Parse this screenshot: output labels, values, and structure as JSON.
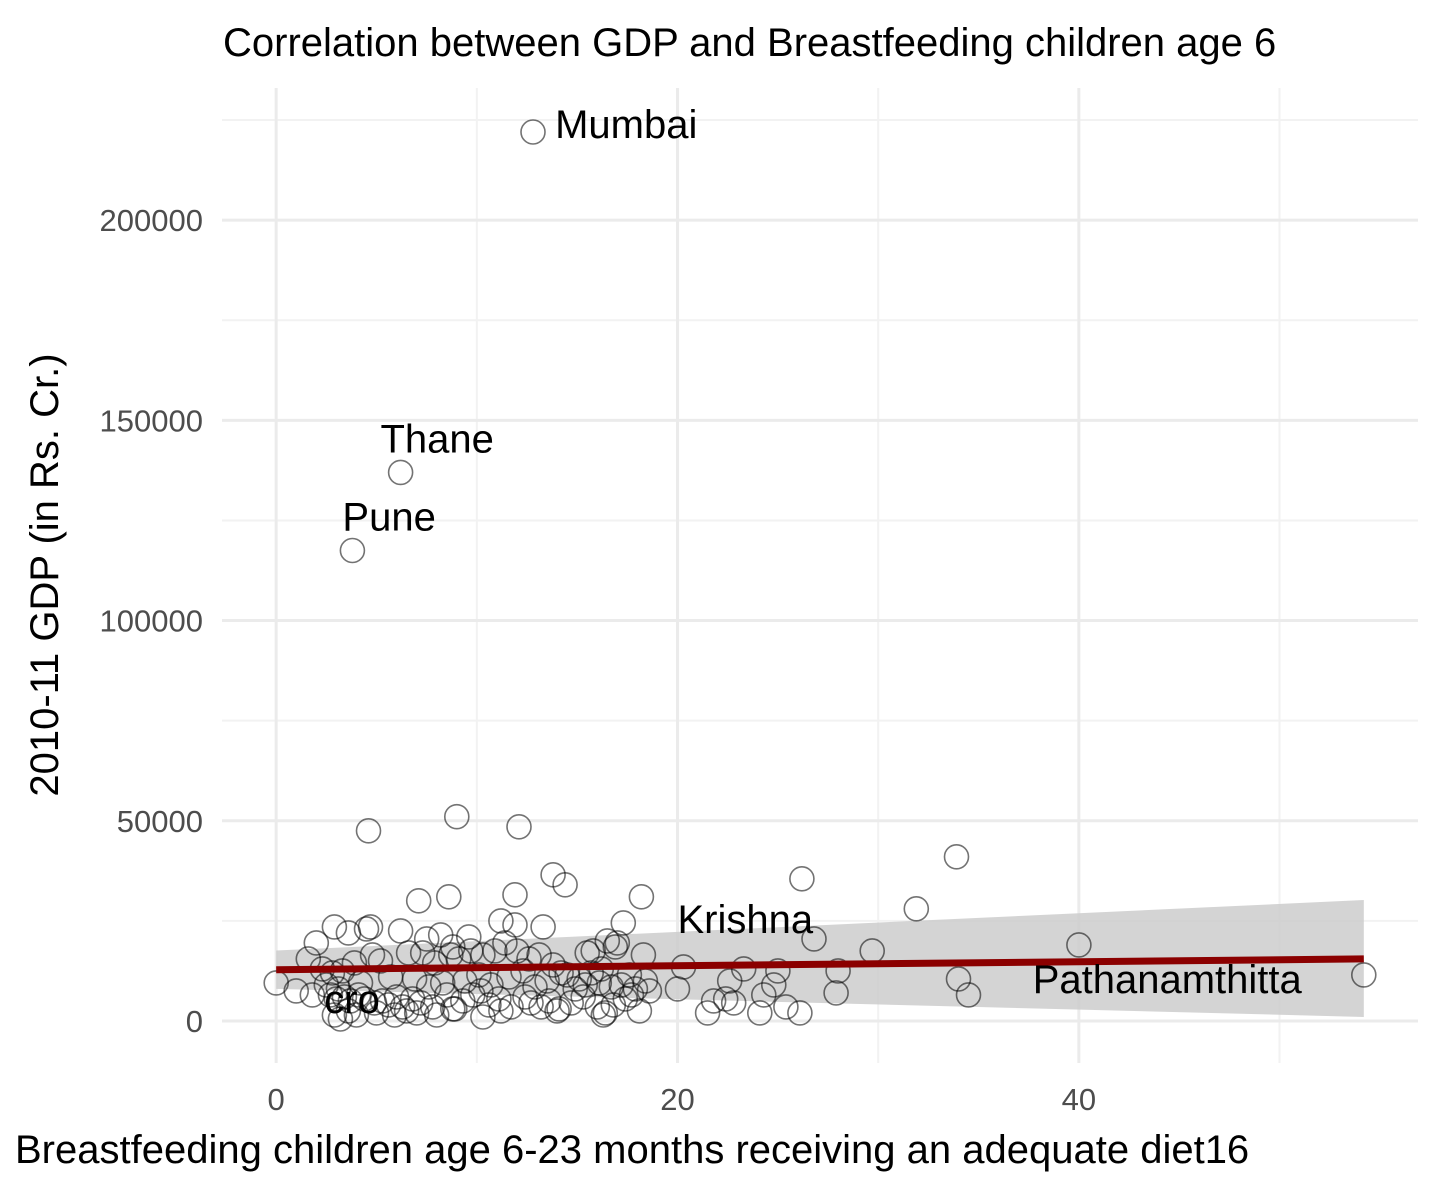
{
  "chart_data": {
    "type": "scatter",
    "title": "Correlation between GDP and Breastfeeding children age 6",
    "xlabel": "Breastfeeding children age 6-23 months receiving an adequate diet16",
    "ylabel": "2010-11 GDP (in Rs. Cr.)",
    "xlim": [
      -2.7,
      56.9
    ],
    "ylim": [
      -10500,
      233000
    ],
    "x_ticks": [
      0,
      20,
      40
    ],
    "x_tick_labels": [
      "0",
      "20",
      "40"
    ],
    "y_ticks": [
      0,
      50000,
      100000,
      150000,
      200000
    ],
    "y_tick_labels": [
      "0",
      "50000",
      "100000",
      "150000",
      "200000"
    ],
    "grid": true,
    "legend": "none",
    "colors": {
      "points": "#000000",
      "fit_line": "#8b0000",
      "confidence_band": "#cccccc"
    },
    "fit_line": {
      "x": [
        0,
        54.2
      ],
      "y": [
        12800,
        15500
      ]
    },
    "confidence_band": {
      "x": [
        0,
        54.2
      ],
      "upper": [
        17600,
        30200
      ],
      "lower": [
        8000,
        1000
      ]
    },
    "annotations": [
      {
        "text": "Mumbai",
        "x": 13.9,
        "y": 224000,
        "anchor": "start"
      },
      {
        "text": "Thane",
        "x": 5.2,
        "y": 145500,
        "anchor": "start"
      },
      {
        "text": "Pune",
        "x": 3.3,
        "y": 126000,
        "anchor": "start"
      },
      {
        "text": "Krishna",
        "x": 20,
        "y": 25500,
        "anchor": "start"
      },
      {
        "text": "Pathanamthitta",
        "x": 37.7,
        "y": 10500,
        "anchor": "start"
      },
      {
        "text": "cro",
        "x": 2.4,
        "y": 5500,
        "anchor": "start"
      }
    ],
    "series": [
      {
        "points": [
          [
            12.8,
            222000
          ],
          [
            6.2,
            137000
          ],
          [
            3.8,
            117500
          ],
          [
            4.6,
            47500
          ],
          [
            9.0,
            51000
          ],
          [
            12.1,
            48500
          ],
          [
            13.8,
            36500
          ],
          [
            14.4,
            34000
          ],
          [
            26.2,
            35500
          ],
          [
            33.9,
            41000
          ],
          [
            8.6,
            31000
          ],
          [
            7.1,
            30000
          ],
          [
            11.9,
            31500
          ],
          [
            18.2,
            31000
          ],
          [
            31.9,
            28000
          ],
          [
            26.8,
            20500
          ],
          [
            40.0,
            19000
          ],
          [
            29.7,
            17500
          ],
          [
            34.0,
            10500
          ],
          [
            34.5,
            6500
          ],
          [
            54.2,
            11500
          ],
          [
            28.0,
            12500
          ],
          [
            27.9,
            7000
          ],
          [
            26.1,
            2000
          ],
          [
            25.4,
            3500
          ],
          [
            24.1,
            2000
          ],
          [
            25.0,
            12500
          ],
          [
            23.3,
            13000
          ],
          [
            20.3,
            13500
          ],
          [
            20.0,
            8000
          ],
          [
            21.5,
            2000
          ],
          [
            21.8,
            5000
          ],
          [
            22.4,
            5500
          ],
          [
            22.8,
            4500
          ],
          [
            22.6,
            10000
          ],
          [
            24.3,
            6500
          ],
          [
            24.8,
            9000
          ],
          [
            2.0,
            19500
          ],
          [
            2.9,
            23500
          ],
          [
            3.6,
            22000
          ],
          [
            4.5,
            23000
          ],
          [
            4.7,
            23500
          ],
          [
            6.2,
            22500
          ],
          [
            7.5,
            20500
          ],
          [
            8.2,
            21500
          ],
          [
            8.8,
            18500
          ],
          [
            9.6,
            21000
          ],
          [
            11.2,
            25000
          ],
          [
            11.9,
            24000
          ],
          [
            13.3,
            23500
          ],
          [
            17.3,
            24500
          ],
          [
            16.5,
            20000
          ],
          [
            16.9,
            18500
          ],
          [
            15.5,
            17000
          ],
          [
            15.8,
            17500
          ],
          [
            17.0,
            19500
          ],
          [
            18.3,
            16500
          ],
          [
            1.6,
            15500
          ],
          [
            2.3,
            13000
          ],
          [
            2.8,
            12000
          ],
          [
            3.3,
            12500
          ],
          [
            3.9,
            14500
          ],
          [
            4.8,
            16500
          ],
          [
            5.2,
            15000
          ],
          [
            6.6,
            17000
          ],
          [
            7.3,
            17000
          ],
          [
            7.9,
            14500
          ],
          [
            8.7,
            16500
          ],
          [
            9.1,
            15500
          ],
          [
            9.7,
            17500
          ],
          [
            10.3,
            16500
          ],
          [
            10.9,
            17500
          ],
          [
            11.4,
            19500
          ],
          [
            12.0,
            17500
          ],
          [
            12.6,
            15500
          ],
          [
            13.1,
            16500
          ],
          [
            13.8,
            14000
          ],
          [
            14.5,
            11500
          ],
          [
            15.1,
            10500
          ],
          [
            15.7,
            12000
          ],
          [
            16.2,
            13000
          ],
          [
            17.6,
            11500
          ],
          [
            18.4,
            10000
          ],
          [
            0.0,
            9500
          ],
          [
            1.0,
            7500
          ],
          [
            1.8,
            6500
          ],
          [
            2.5,
            9000
          ],
          [
            3.1,
            8000
          ],
          [
            4.2,
            9500
          ],
          [
            5.7,
            11000
          ],
          [
            6.9,
            10500
          ],
          [
            7.6,
            8500
          ],
          [
            8.3,
            9500
          ],
          [
            9.4,
            10000
          ],
          [
            10.1,
            11500
          ],
          [
            10.7,
            9000
          ],
          [
            11.6,
            11000
          ],
          [
            12.3,
            12500
          ],
          [
            12.9,
            8500
          ],
          [
            13.5,
            10000
          ],
          [
            14.2,
            12000
          ],
          [
            14.9,
            8000
          ],
          [
            15.4,
            9000
          ],
          [
            16.1,
            9500
          ],
          [
            16.7,
            8500
          ],
          [
            17.2,
            9000
          ],
          [
            17.9,
            8000
          ],
          [
            18.6,
            7500
          ],
          [
            2.7,
            6500
          ],
          [
            3.0,
            5500
          ],
          [
            3.4,
            6000
          ],
          [
            3.7,
            5000
          ],
          [
            4.1,
            6500
          ],
          [
            4.4,
            5500
          ],
          [
            4.9,
            4500
          ],
          [
            5.3,
            5000
          ],
          [
            5.6,
            4000
          ],
          [
            6.0,
            6000
          ],
          [
            6.3,
            3500
          ],
          [
            6.8,
            5500
          ],
          [
            7.2,
            4500
          ],
          [
            7.8,
            3500
          ],
          [
            8.5,
            6500
          ],
          [
            8.9,
            3000
          ],
          [
            9.3,
            5000
          ],
          [
            9.8,
            6500
          ],
          [
            10.2,
            7500
          ],
          [
            10.6,
            4000
          ],
          [
            11.1,
            5500
          ],
          [
            11.7,
            3500
          ],
          [
            12.4,
            6000
          ],
          [
            12.7,
            4500
          ],
          [
            13.2,
            3500
          ],
          [
            13.6,
            5000
          ],
          [
            14.1,
            3000
          ],
          [
            14.7,
            4500
          ],
          [
            15.3,
            6000
          ],
          [
            16.0,
            3500
          ],
          [
            16.4,
            2000
          ],
          [
            16.8,
            4000
          ],
          [
            17.4,
            5500
          ],
          [
            17.7,
            6500
          ],
          [
            18.1,
            2500
          ],
          [
            2.9,
            1500
          ],
          [
            3.2,
            500
          ],
          [
            3.6,
            2500
          ],
          [
            4.0,
            1500
          ],
          [
            5.0,
            2000
          ],
          [
            5.9,
            1500
          ],
          [
            6.5,
            2500
          ],
          [
            7.0,
            2000
          ],
          [
            8.0,
            1500
          ],
          [
            8.8,
            3000
          ],
          [
            10.3,
            1000
          ],
          [
            11.2,
            2500
          ],
          [
            14.0,
            2500
          ],
          [
            16.3,
            1500
          ]
        ]
      }
    ]
  }
}
